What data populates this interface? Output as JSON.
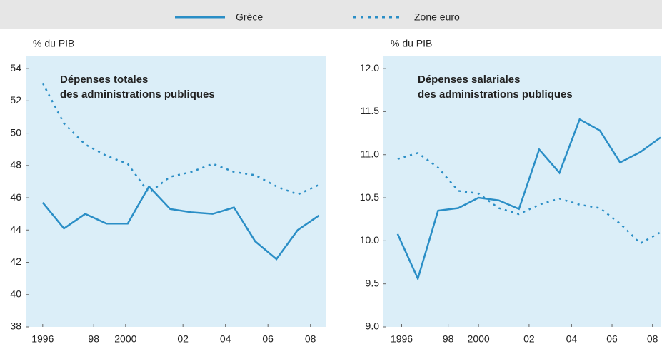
{
  "chart_data": [
    {
      "type": "line",
      "ylabel": "% du PIB",
      "annotation": [
        "Dépenses totales",
        "des administrations publiques"
      ],
      "x": [
        1995,
        1996,
        1997,
        1998,
        1999,
        2000,
        2001,
        2002,
        2003,
        2004,
        2005,
        2006,
        2007,
        2008
      ],
      "xlim": [
        1994.2,
        2008.35
      ],
      "xticks": [
        {
          "value": 1995,
          "label": "1996"
        },
        {
          "value": 1997.4,
          "label": "98"
        },
        {
          "value": 1998.9,
          "label": "2000"
        },
        {
          "value": 2001.6,
          "label": "02"
        },
        {
          "value": 2003.6,
          "label": "04"
        },
        {
          "value": 2005.6,
          "label": "06"
        },
        {
          "value": 2007.6,
          "label": "08"
        }
      ],
      "ylim": [
        38,
        54.8
      ],
      "yticks": [
        38,
        40,
        42,
        44,
        46,
        48,
        50,
        52,
        54
      ],
      "series": [
        {
          "name": "Grèce",
          "color": "#2a8ec6",
          "dash": false,
          "values": [
            45.7,
            44.1,
            45.0,
            44.4,
            44.4,
            46.7,
            45.3,
            45.1,
            45.0,
            45.4,
            43.3,
            42.2,
            44.0,
            44.9
          ]
        },
        {
          "name": "Zone euro",
          "color": "#2a8ec6",
          "dash": true,
          "values": [
            53.1,
            50.6,
            49.3,
            48.6,
            48.1,
            46.3,
            47.3,
            47.6,
            48.1,
            47.6,
            47.4,
            46.7,
            46.2,
            46.8
          ]
        }
      ]
    },
    {
      "type": "line",
      "ylabel": "% du PIB",
      "annotation": [
        "Dépenses salariales",
        "des administrations publiques"
      ],
      "x": [
        1995,
        1996,
        1997,
        1998,
        1999,
        2000,
        2001,
        2002,
        2003,
        2004,
        2005,
        2006,
        2007,
        2008
      ],
      "xlim": [
        1994.3,
        2008
      ],
      "xticks": [
        {
          "value": 1995.2,
          "label": "1996"
        },
        {
          "value": 1997.5,
          "label": "98"
        },
        {
          "value": 1999.0,
          "label": "2000"
        },
        {
          "value": 2001.5,
          "label": "02"
        },
        {
          "value": 2003.6,
          "label": "04"
        },
        {
          "value": 2005.6,
          "label": "06"
        },
        {
          "value": 2007.6,
          "label": "08"
        }
      ],
      "ylim": [
        9.0,
        12.15
      ],
      "yticks": [
        {
          "value": 9.0,
          "label": "9.0"
        },
        {
          "value": 9.5,
          "label": "9.5"
        },
        {
          "value": 10.0,
          "label": "10.0"
        },
        {
          "value": 10.5,
          "label": "10.5"
        },
        {
          "value": 11.0,
          "label": "11.0"
        },
        {
          "value": 11.5,
          "label": "11.5"
        },
        {
          "value": 12.0,
          "label": "12.0"
        }
      ],
      "series": [
        {
          "name": "Grèce",
          "color": "#2a8ec6",
          "dash": false,
          "values": [
            10.08,
            9.56,
            10.35,
            10.38,
            10.5,
            10.47,
            10.37,
            11.06,
            10.79,
            11.41,
            11.28,
            10.91,
            11.03,
            11.2
          ]
        },
        {
          "name": "Zone euro",
          "color": "#2a8ec6",
          "dash": true,
          "values": [
            10.95,
            11.02,
            10.85,
            10.58,
            10.55,
            10.38,
            10.31,
            10.42,
            10.49,
            10.42,
            10.38,
            10.2,
            9.97,
            10.1
          ]
        }
      ]
    }
  ]
}
